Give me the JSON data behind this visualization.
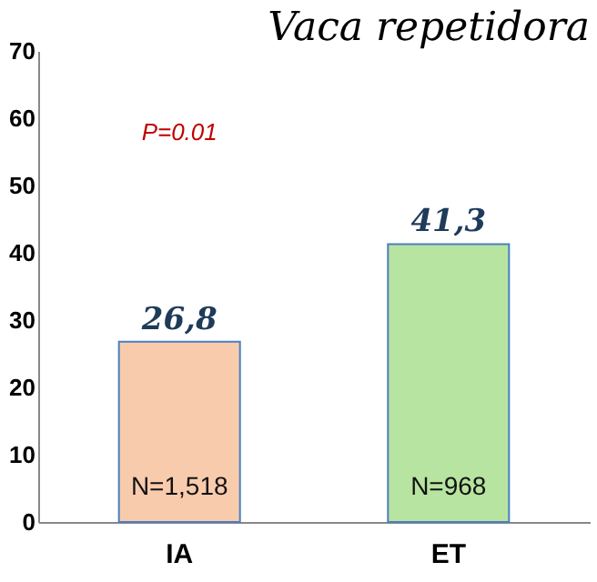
{
  "chart_data": {
    "type": "bar",
    "title": "Vaca repetidora",
    "categories": [
      "IA",
      "ET"
    ],
    "values": [
      26.8,
      41.3
    ],
    "colors": [
      "#f8cbad",
      "#b7e4a0"
    ],
    "value_labels": [
      "26,8",
      "41,3"
    ],
    "annotations": [
      "P=0.01",
      "N=1,518",
      "N=968"
    ],
    "ylim": [
      0,
      70
    ],
    "yticks": [
      0,
      10,
      20,
      30,
      40,
      50,
      60,
      70
    ],
    "grid": false
  }
}
